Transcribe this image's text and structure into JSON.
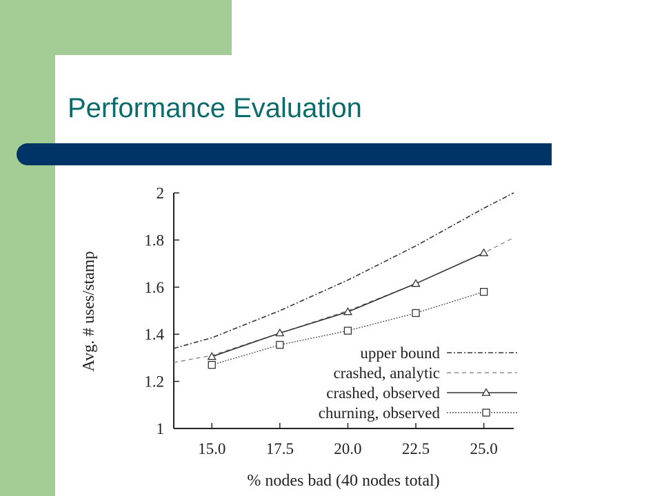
{
  "slide": {
    "title": "Performance Evaluation"
  },
  "colors": {
    "sidebar_green": "#a3cd94",
    "title_bar_navy": "#003366",
    "title_teal": "#0b6b6b"
  },
  "chart_data": {
    "type": "line",
    "xlabel": "% nodes bad (40 nodes total)",
    "ylabel": "Avg. # uses/stamp",
    "x_ticks": [
      "15.0",
      "17.5",
      "20.0",
      "22.5",
      "25.0"
    ],
    "y_ticks": [
      "1",
      "1.2",
      "1.4",
      "1.6",
      "1.8",
      "2"
    ],
    "xlim": [
      13.6,
      26.1
    ],
    "ylim": [
      1.0,
      2.0
    ],
    "grid": false,
    "legend_position": "bottom-right",
    "series": [
      {
        "name": "upper bound",
        "style": "dash-dot",
        "marker": "none",
        "x": [
          13.6,
          15.0,
          17.5,
          20.0,
          22.5,
          25.0,
          26.1
        ],
        "y": [
          1.34,
          1.385,
          1.5,
          1.63,
          1.775,
          1.935,
          2.0
        ]
      },
      {
        "name": "crashed, analytic",
        "style": "dashed",
        "marker": "none",
        "x": [
          13.6,
          15.0,
          17.5,
          20.0,
          22.5,
          25.0,
          26.1
        ],
        "y": [
          1.28,
          1.31,
          1.405,
          1.5,
          1.615,
          1.745,
          1.81
        ]
      },
      {
        "name": "crashed, observed",
        "style": "solid",
        "marker": "triangle",
        "x": [
          15.0,
          17.5,
          20.0,
          22.5,
          25.0
        ],
        "y": [
          1.305,
          1.405,
          1.495,
          1.615,
          1.745
        ]
      },
      {
        "name": "churning, observed",
        "style": "dotted",
        "marker": "square",
        "x": [
          15.0,
          17.5,
          20.0,
          22.5,
          25.0
        ],
        "y": [
          1.27,
          1.355,
          1.415,
          1.49,
          1.58
        ]
      }
    ]
  }
}
